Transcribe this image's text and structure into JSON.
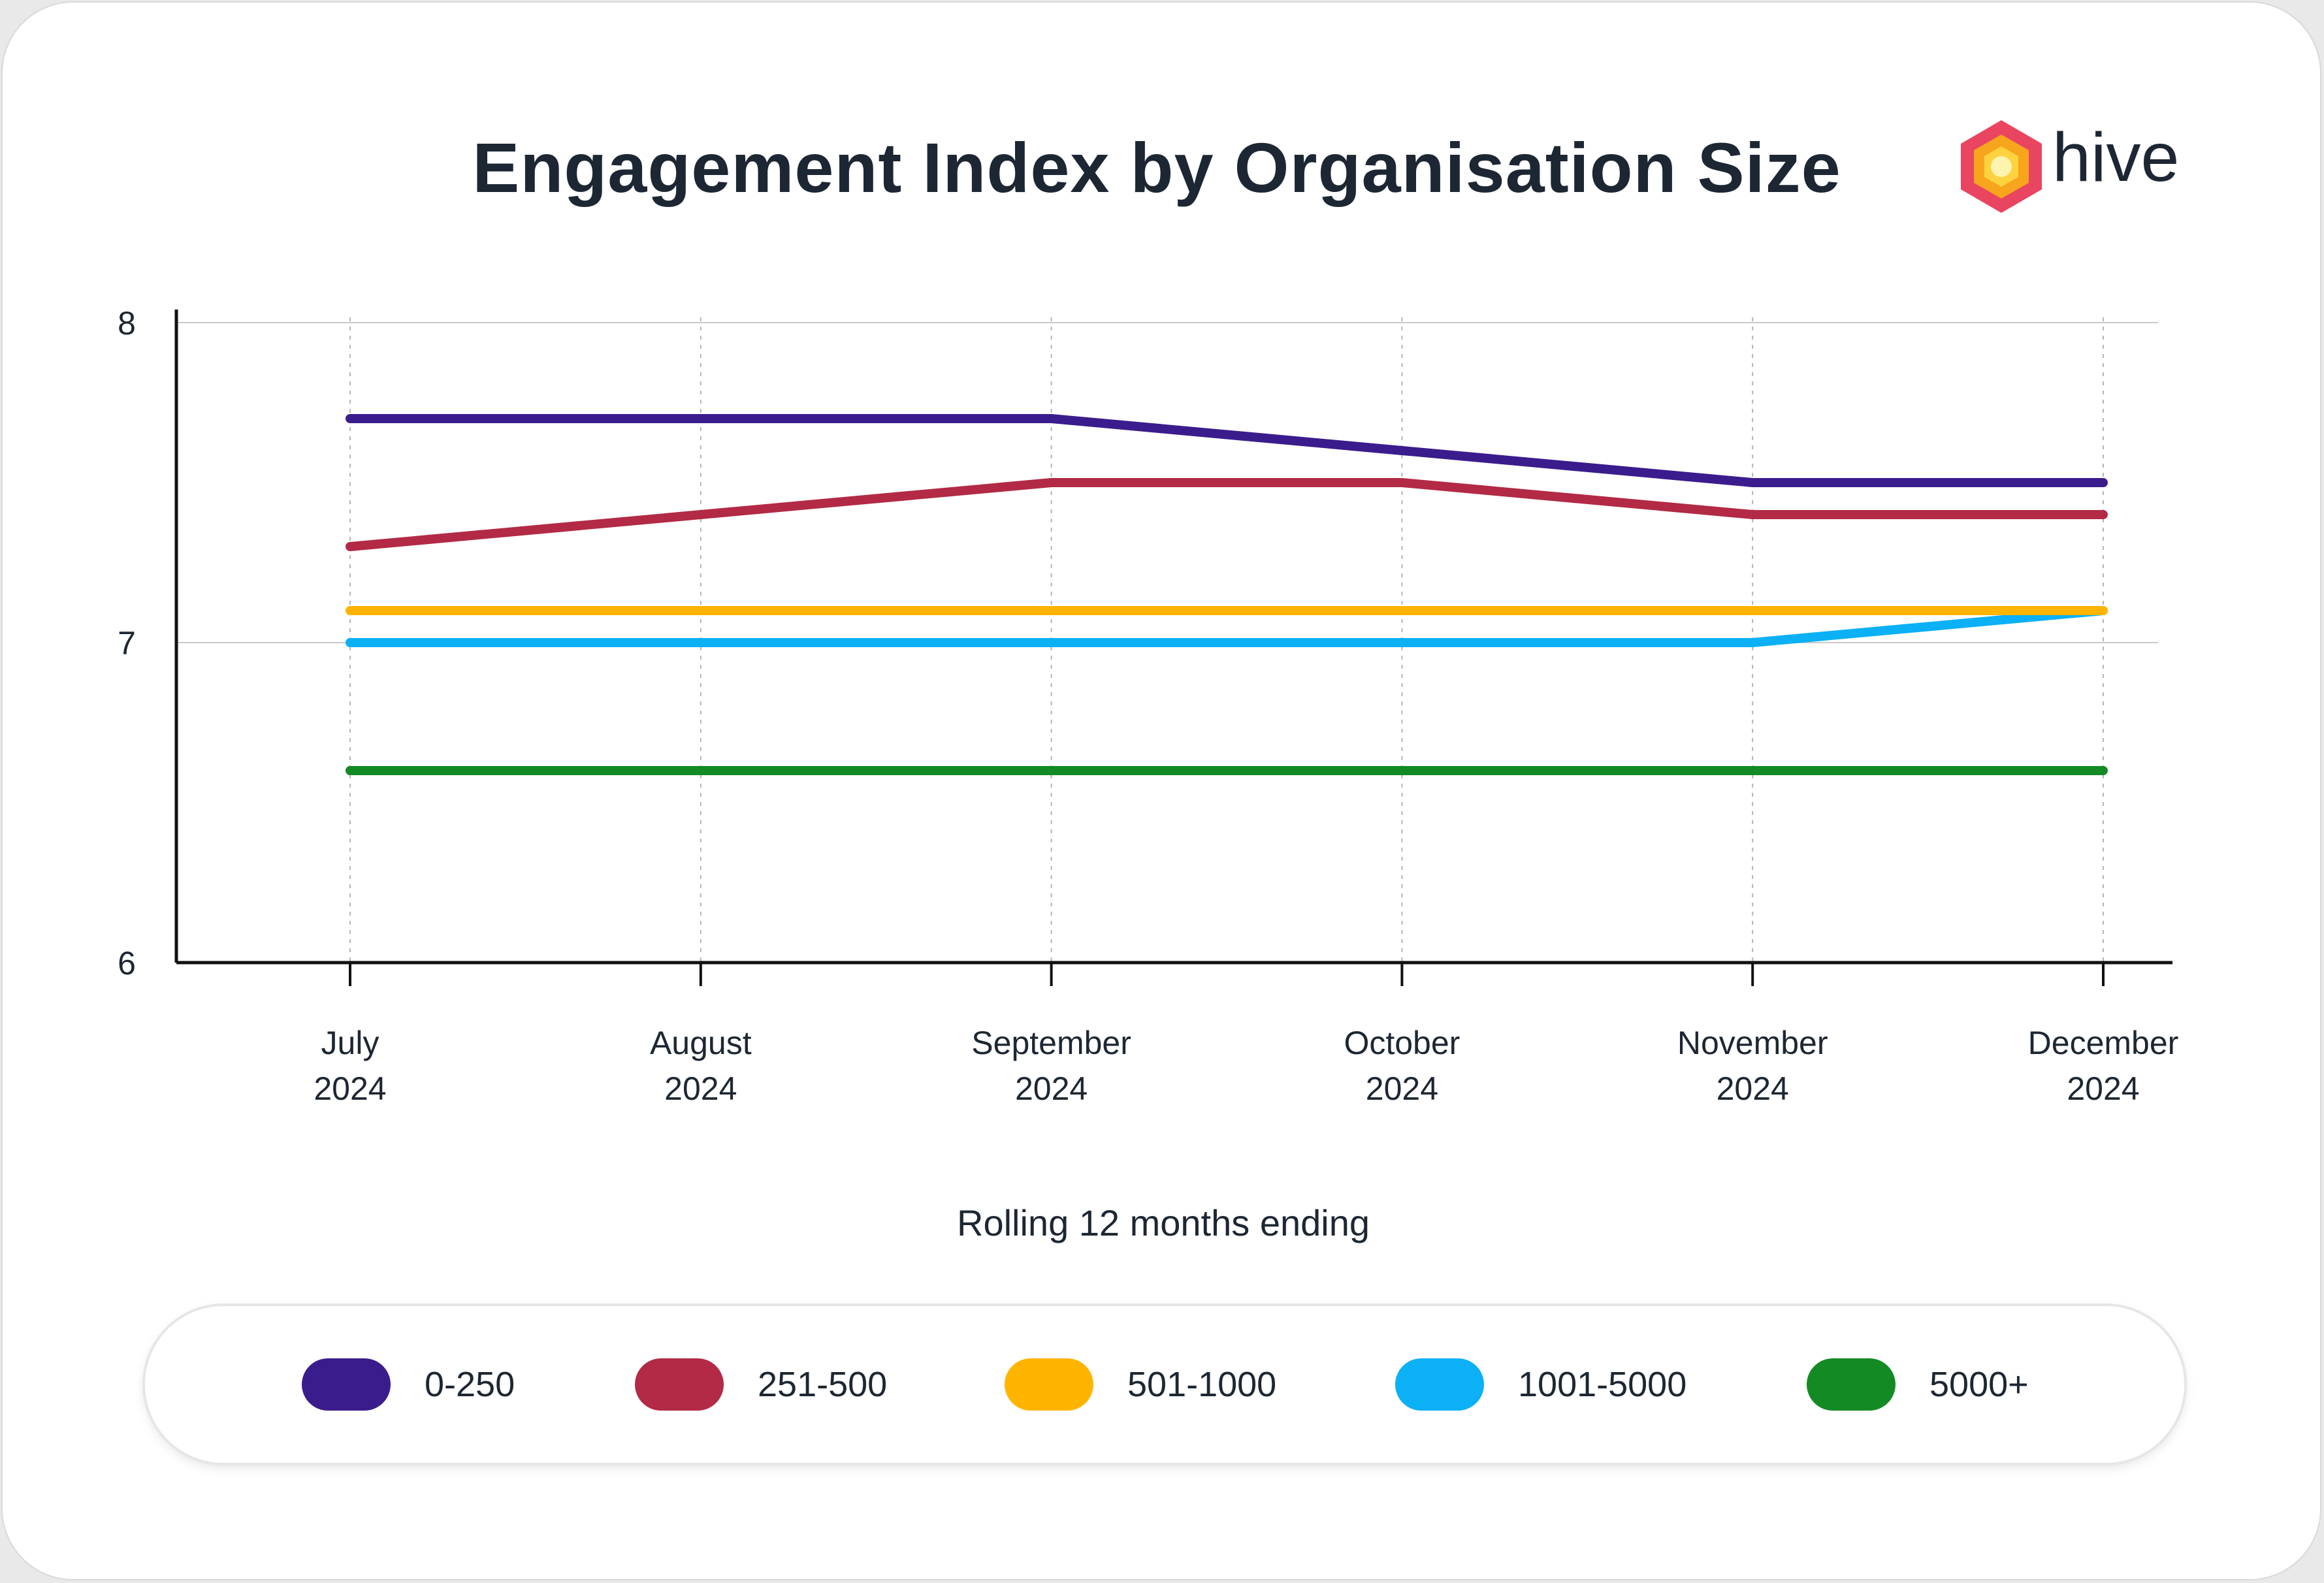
{
  "chart_data": {
    "type": "line",
    "title": "Engagement Index by Organisation Size",
    "xlabel": "Rolling 12 months ending",
    "ylabel": "",
    "ylim": [
      6,
      8
    ],
    "yticks": [
      "6",
      "7",
      "8"
    ],
    "grid": true,
    "legend_position": "bottom",
    "categories": [
      {
        "month": "July",
        "year": "2024"
      },
      {
        "month": "August",
        "year": "2024"
      },
      {
        "month": "September",
        "year": "2024"
      },
      {
        "month": "October",
        "year": "2024"
      },
      {
        "month": "November",
        "year": "2024"
      },
      {
        "month": "December",
        "year": "2024"
      }
    ],
    "series": [
      {
        "name": "0-250",
        "color": "#3b1c8c",
        "values": [
          7.7,
          7.7,
          7.7,
          7.6,
          7.5,
          7.5
        ]
      },
      {
        "name": "251-500",
        "color": "#b22a45",
        "values": [
          7.3,
          7.4,
          7.5,
          7.5,
          7.4,
          7.4
        ]
      },
      {
        "name": "501-1000",
        "color": "#ffb400",
        "values": [
          7.1,
          7.1,
          7.1,
          7.1,
          7.1,
          7.1
        ]
      },
      {
        "name": "1001-5000",
        "color": "#0bb0f5",
        "values": [
          7.0,
          7.0,
          7.0,
          7.0,
          7.0,
          7.1
        ]
      },
      {
        "name": "5000+",
        "color": "#148a24",
        "values": [
          6.6,
          6.6,
          6.6,
          6.6,
          6.6,
          6.6
        ]
      }
    ]
  },
  "brand": {
    "name": "hive",
    "logo_icon": "hexagon-logo-icon",
    "colors": {
      "outer": "#e94560",
      "middle": "#f7a51c",
      "inner": "#ffd23f",
      "core": "#fff3b0"
    }
  }
}
